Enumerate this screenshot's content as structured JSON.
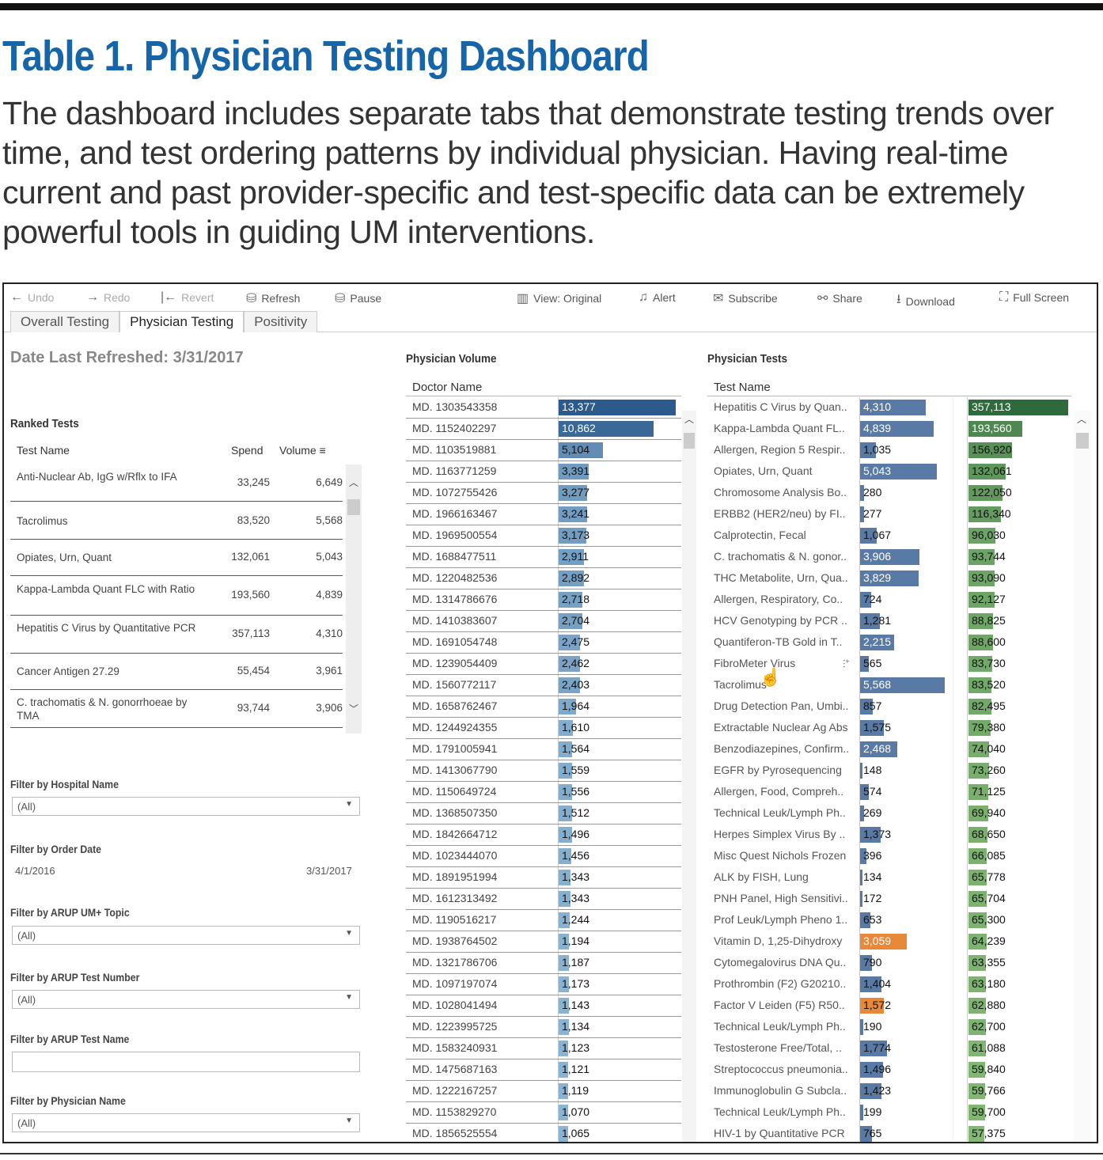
{
  "header": {
    "title": "Table 1. Physician Testing Dashboard",
    "description": "The dashboard includes separate tabs that demonstrate testing trends over time, and test ordering patterns by individual physician. Having real-time current and past provider-specific and test-specific data can be extremely powerful tools in guiding UM interventions."
  },
  "toolbar": {
    "undo": "Undo",
    "redo": "Redo",
    "revert": "Revert",
    "refresh": "Refresh",
    "pause": "Pause",
    "view": "View: Original",
    "alert": "Alert",
    "subscribe": "Subscribe",
    "share": "Share",
    "download": "Download",
    "fullscreen": "Full Screen"
  },
  "tabs": [
    {
      "label": "Overall Testing"
    },
    {
      "label": "Physician Testing",
      "active": true
    },
    {
      "label": "Positivity"
    }
  ],
  "refreshed": "Date Last Refreshed: 3/31/2017",
  "ranked": {
    "title": "Ranked Tests",
    "col_name": "Test Name",
    "col_spend": "Spend",
    "col_volume": "Volume",
    "rows": [
      {
        "name": "Anti-Nuclear Ab, IgG w/Rflx to IFA",
        "spend": "33,245",
        "volume": "6,649"
      },
      {
        "name": "Tacrolimus",
        "spend": "83,520",
        "volume": "5,568"
      },
      {
        "name": "Opiates, Urn, Quant",
        "spend": "132,061",
        "volume": "5,043"
      },
      {
        "name": "Kappa-Lambda Quant FLC with Ratio",
        "spend": "193,560",
        "volume": "4,839"
      },
      {
        "name": "Hepatitis C Virus by Quantitative PCR",
        "spend": "357,113",
        "volume": "4,310"
      },
      {
        "name": "Cancer Antigen 27.29",
        "spend": "55,454",
        "volume": "3,961"
      },
      {
        "name": "C. trachomatis & N. gonorrhoeae by TMA",
        "spend": "93,744",
        "volume": "3,906"
      }
    ]
  },
  "filters": {
    "hospital": {
      "label": "Filter by Hospital Name",
      "value": "(All)"
    },
    "order_date": {
      "label": "Filter by Order Date",
      "start": "4/1/2016",
      "end": "3/31/2017"
    },
    "topic": {
      "label": "Filter by ARUP UM+ Topic",
      "value": "(All)"
    },
    "test_number": {
      "label": "Filter by ARUP Test Number",
      "value": "(All)"
    },
    "test_name": {
      "label": "Filter by ARUP Test Name",
      "value": ""
    },
    "physician": {
      "label": "Filter by Physician Name",
      "value": "(All)"
    }
  },
  "physician_volume": {
    "title": "Physician Volume",
    "col": "Doctor Name",
    "colors": {
      "low": "#a6cde6",
      "high": "#2c5a8c"
    },
    "rows": [
      [
        "MD. 1303543358",
        13377
      ],
      [
        "MD. 1152402297",
        10862
      ],
      [
        "MD. 1103519881",
        5104
      ],
      [
        "MD. 1163771259",
        3391
      ],
      [
        "MD. 1072755426",
        3277
      ],
      [
        "MD. 1966163467",
        3241
      ],
      [
        "MD. 1969500554",
        3173
      ],
      [
        "MD. 1688477511",
        2911
      ],
      [
        "MD. 1220482536",
        2892
      ],
      [
        "MD. 1314786676",
        2718
      ],
      [
        "MD. 1410383607",
        2704
      ],
      [
        "MD. 1691054748",
        2475
      ],
      [
        "MD. 1239054409",
        2462
      ],
      [
        "MD. 1560772117",
        2403
      ],
      [
        "MD. 1658762467",
        1964
      ],
      [
        "MD. 1244924355",
        1610
      ],
      [
        "MD. 1791005941",
        1564
      ],
      [
        "MD. 1413067790",
        1559
      ],
      [
        "MD. 1150649724",
        1556
      ],
      [
        "MD. 1368507350",
        1512
      ],
      [
        "MD. 1842664712",
        1496
      ],
      [
        "MD. 1023444070",
        1456
      ],
      [
        "MD. 1891951994",
        1343
      ],
      [
        "MD. 1612313492",
        1343
      ],
      [
        "MD. 1190516217",
        1244
      ],
      [
        "MD. 1938764502",
        1194
      ],
      [
        "MD. 1321786706",
        1187
      ],
      [
        "MD. 1097197074",
        1173
      ],
      [
        "MD. 1028041494",
        1143
      ],
      [
        "MD. 1223995725",
        1134
      ],
      [
        "MD. 1583240931",
        1123
      ],
      [
        "MD. 1475687163",
        1121
      ],
      [
        "MD. 1222167257",
        1119
      ],
      [
        "MD. 1153829270",
        1070
      ],
      [
        "MD. 1856525554",
        1065
      ]
    ]
  },
  "physician_tests": {
    "title": "Physician Tests",
    "col": "Test Name",
    "colors": {
      "volume": "#5a7aa6",
      "flagged": "#e8893a",
      "spend_low": "#93c67f",
      "spend_high": "#2f6a3c"
    },
    "rows": [
      [
        "Hepatitis C Virus by Quan..",
        4310,
        357113
      ],
      [
        "Kappa-Lambda Quant FL..",
        4839,
        193560
      ],
      [
        "Allergen, Region 5 Respir..",
        1035,
        156920
      ],
      [
        "Opiates, Urn, Quant",
        5043,
        132061
      ],
      [
        "Chromosome Analysis Bo..",
        280,
        122050
      ],
      [
        "ERBB2 (HER2/neu) by FI..",
        277,
        116340
      ],
      [
        "Calprotectin, Fecal",
        1067,
        96030
      ],
      [
        "C. trachomatis & N. gonor..",
        3906,
        93744
      ],
      [
        "THC Metabolite, Urn, Qua..",
        3829,
        93090
      ],
      [
        "Allergen, Respiratory, Co..",
        724,
        92127
      ],
      [
        "HCV Genotyping by PCR ..",
        1281,
        88825
      ],
      [
        "Quantiferon-TB Gold in T..",
        2215,
        88600
      ],
      [
        "FibroMeter Virus",
        565,
        83730
      ],
      [
        "Tacrolimus",
        5568,
        83520
      ],
      [
        "Drug Detection Pan, Umbi..",
        857,
        82495
      ],
      [
        "Extractable Nuclear Ag Abs",
        1575,
        79380
      ],
      [
        "Benzodiazepines, Confirm..",
        2468,
        74040
      ],
      [
        "EGFR by Pyrosequencing",
        148,
        73260
      ],
      [
        "Allergen, Food, Compreh..",
        574,
        71125
      ],
      [
        "Technical Leuk/Lymph Ph..",
        269,
        69940
      ],
      [
        "Herpes Simplex Virus By ..",
        1373,
        68650
      ],
      [
        "Misc Quest Nichols Frozen",
        396,
        66085
      ],
      [
        "ALK by FISH, Lung",
        134,
        65778
      ],
      [
        "PNH Panel, High Sensitivi..",
        172,
        65704
      ],
      [
        "Prof Leuk/Lymph Pheno 1..",
        653,
        65300
      ],
      [
        "Vitamin D, 1,25-Dihydroxy",
        3059,
        64239,
        "flagged"
      ],
      [
        "Cytomegalovirus DNA Qu..",
        790,
        63355
      ],
      [
        "Prothrombin (F2) G20210..",
        1404,
        63180
      ],
      [
        "Factor V Leiden (F5) R50..",
        1572,
        62880,
        "flagged"
      ],
      [
        "Technical Leuk/Lymph Ph..",
        190,
        62700
      ],
      [
        "Testosterone Free/Total, ..",
        1774,
        61088
      ],
      [
        "Streptococcus pneumonia..",
        1496,
        59840
      ],
      [
        "Immunoglobulin G Subcla..",
        1423,
        59766
      ],
      [
        "Technical Leuk/Lymph Ph..",
        199,
        59700
      ],
      [
        "HIV-1 by Quantitative PCR",
        765,
        57375
      ]
    ]
  }
}
